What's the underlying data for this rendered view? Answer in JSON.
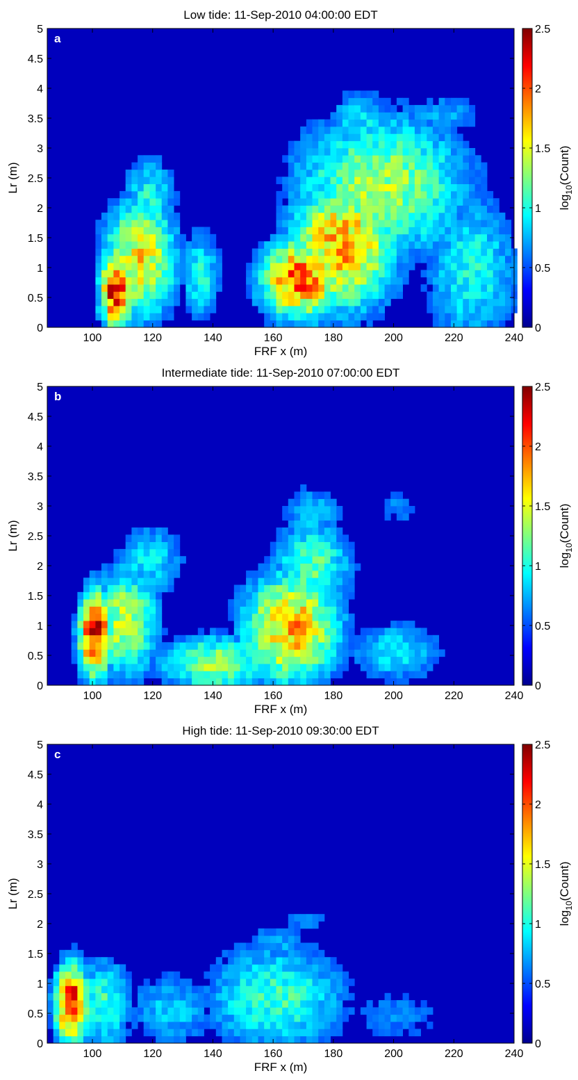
{
  "chart_data": [
    {
      "type": "heatmap",
      "panel_label": "a",
      "title": "Low tide:  11-Sep-2010 04:00:00 EDT",
      "xlabel": "FRF x (m)",
      "ylabel": "Lr (m)",
      "xlim": [
        85,
        240
      ],
      "ylim": [
        0,
        5
      ],
      "xticks": [
        "100",
        "120",
        "140",
        "160",
        "180",
        "200",
        "220",
        "240"
      ],
      "yticks": [
        "0",
        "0.5",
        "1",
        "1.5",
        "2",
        "2.5",
        "3",
        "3.5",
        "4",
        "4.5",
        "5"
      ],
      "colorbar": {
        "label_main": "log",
        "label_sub": "10",
        "label_rest": "(Count)",
        "ticks": [
          "0",
          "0.5",
          "1",
          "1.5",
          "2",
          "2.5"
        ],
        "range": [
          0,
          2.5
        ],
        "colormap": "jet"
      },
      "background_value": 0,
      "blobs": [
        {
          "x": 107,
          "y": 0.55,
          "sx": 4,
          "sy": 0.45,
          "v": 2.4
        },
        {
          "x": 115,
          "y": 1.1,
          "sx": 9,
          "sy": 0.75,
          "v": 1.6
        },
        {
          "x": 118,
          "y": 2.1,
          "sx": 7,
          "sy": 0.55,
          "v": 0.9
        },
        {
          "x": 135,
          "y": 0.8,
          "sx": 5,
          "sy": 0.6,
          "v": 0.9
        },
        {
          "x": 168,
          "y": 0.75,
          "sx": 10,
          "sy": 0.5,
          "v": 2.0
        },
        {
          "x": 182,
          "y": 1.3,
          "sx": 13,
          "sy": 0.8,
          "v": 1.8
        },
        {
          "x": 195,
          "y": 2.3,
          "sx": 22,
          "sy": 0.9,
          "v": 1.3
        },
        {
          "x": 188,
          "y": 3.4,
          "sx": 9,
          "sy": 0.4,
          "v": 0.8
        },
        {
          "x": 225,
          "y": 0.9,
          "sx": 12,
          "sy": 1.0,
          "v": 0.9
        },
        {
          "x": 215,
          "y": 3.5,
          "sx": 12,
          "sy": 0.3,
          "v": 0.6
        }
      ]
    },
    {
      "type": "heatmap",
      "panel_label": "b",
      "title": "Intermediate tide:  11-Sep-2010 07:00:00 EDT",
      "xlabel": "FRF x (m)",
      "ylabel": "Lr (m)",
      "xlim": [
        85,
        240
      ],
      "ylim": [
        0,
        5
      ],
      "xticks": [
        "100",
        "120",
        "140",
        "160",
        "180",
        "200",
        "220",
        "240"
      ],
      "yticks": [
        "0",
        "0.5",
        "1",
        "1.5",
        "2",
        "2.5",
        "3",
        "3.5",
        "4",
        "4.5",
        "5"
      ],
      "colorbar": {
        "label_main": "log",
        "label_sub": "10",
        "label_rest": "(Count)",
        "ticks": [
          "0",
          "0.5",
          "1",
          "1.5",
          "2",
          "2.5"
        ],
        "range": [
          0,
          2.5
        ],
        "colormap": "jet"
      },
      "background_value": 0,
      "blobs": [
        {
          "x": 100,
          "y": 0.8,
          "sx": 4,
          "sy": 0.55,
          "v": 2.35
        },
        {
          "x": 110,
          "y": 1.0,
          "sx": 8,
          "sy": 0.7,
          "v": 1.4
        },
        {
          "x": 118,
          "y": 2.0,
          "sx": 9,
          "sy": 0.5,
          "v": 0.8
        },
        {
          "x": 140,
          "y": 0.3,
          "sx": 14,
          "sy": 0.35,
          "v": 1.3
        },
        {
          "x": 165,
          "y": 0.9,
          "sx": 12,
          "sy": 0.7,
          "v": 1.75
        },
        {
          "x": 172,
          "y": 1.9,
          "sx": 10,
          "sy": 0.6,
          "v": 1.1
        },
        {
          "x": 172,
          "y": 2.8,
          "sx": 8,
          "sy": 0.4,
          "v": 0.7
        },
        {
          "x": 200,
          "y": 0.5,
          "sx": 12,
          "sy": 0.4,
          "v": 0.8
        },
        {
          "x": 200,
          "y": 2.9,
          "sx": 6,
          "sy": 0.3,
          "v": 0.5
        }
      ]
    },
    {
      "type": "heatmap",
      "panel_label": "c",
      "title": "High tide:  11-Sep-2010 09:30:00 EDT",
      "xlabel": "FRF x (m)",
      "ylabel": "Lr (m)",
      "xlim": [
        85,
        240
      ],
      "ylim": [
        0,
        5
      ],
      "xticks": [
        "100",
        "120",
        "140",
        "160",
        "180",
        "200",
        "220",
        "240"
      ],
      "yticks": [
        "0",
        "0.5",
        "1",
        "1.5",
        "2",
        "2.5",
        "3",
        "3.5",
        "4",
        "4.5",
        "5"
      ],
      "colorbar": {
        "label_main": "log",
        "label_sub": "10",
        "label_rest": "(Count)",
        "ticks": [
          "0",
          "0.5",
          "1",
          "1.5",
          "2",
          "2.5"
        ],
        "range": [
          0,
          2.5
        ],
        "colormap": "jet"
      },
      "background_value": 0,
      "blobs": [
        {
          "x": 92,
          "y": 0.6,
          "sx": 4,
          "sy": 0.5,
          "v": 2.3
        },
        {
          "x": 103,
          "y": 0.6,
          "sx": 7,
          "sy": 0.6,
          "v": 1.0
        },
        {
          "x": 125,
          "y": 0.5,
          "sx": 12,
          "sy": 0.5,
          "v": 0.7
        },
        {
          "x": 160,
          "y": 0.7,
          "sx": 18,
          "sy": 0.7,
          "v": 1.0
        },
        {
          "x": 160,
          "y": 1.6,
          "sx": 10,
          "sy": 0.3,
          "v": 0.6
        },
        {
          "x": 170,
          "y": 2.0,
          "sx": 10,
          "sy": 0.15,
          "v": 0.5
        },
        {
          "x": 200,
          "y": 0.4,
          "sx": 15,
          "sy": 0.4,
          "v": 0.5
        }
      ]
    }
  ]
}
